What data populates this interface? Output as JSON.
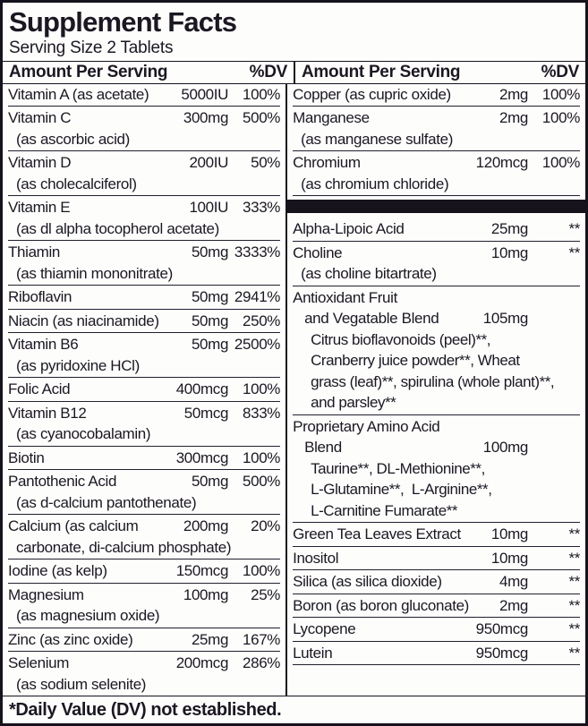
{
  "label": {
    "title": "Supplement Facts",
    "serving": "Serving Size 2 Tablets",
    "header_amount": "Amount Per Serving",
    "header_dv": "%DV",
    "footnote": "*Daily Value (DV) not established."
  },
  "colors": {
    "text": "#1c1722",
    "bar": "#17131c",
    "background": "#fdfdfc",
    "hairline": "#241e2e"
  },
  "left_rows": [
    {
      "name": "Vitamin A (as acetate)",
      "amount": "5000IU",
      "dv": "100%"
    },
    {
      "name": "Vitamin C",
      "amount": "300mg",
      "dv": "500%",
      "sub": "(as ascorbic acid)"
    },
    {
      "name": "Vitamin D",
      "amount": "200IU",
      "dv": "50%",
      "sub": "(as cholecalciferol)"
    },
    {
      "name": "Vitamin E",
      "amount": "100IU",
      "dv": "333%",
      "sub": "(as dl alpha tocopherol acetate)"
    },
    {
      "name": "Thiamin",
      "amount": "50mg",
      "dv": "3333%",
      "sub": "(as thiamin mononitrate)"
    },
    {
      "name": "Riboflavin",
      "amount": "50mg",
      "dv": "2941%"
    },
    {
      "name": "Niacin (as niacinamide)",
      "amount": "50mg",
      "dv": "250%"
    },
    {
      "name": "Vitamin B6",
      "amount": "50mg",
      "dv": "2500%",
      "sub": "(as pyridoxine HCl)"
    },
    {
      "name": "Folic Acid",
      "amount": "400mcg",
      "dv": "100%"
    },
    {
      "name": "Vitamin B12",
      "amount": "50mcg",
      "dv": "833%",
      "sub": "(as cyanocobalamin)"
    },
    {
      "name": "Biotin",
      "amount": "300mcg",
      "dv": "100%"
    },
    {
      "name": "Pantothenic Acid",
      "amount": "50mg",
      "dv": "500%",
      "sub": "(as d-calcium pantothenate)"
    },
    {
      "name": "Calcium (as calcium",
      "amount": "200mg",
      "dv": "20%",
      "sub": "carbonate, di-calcium phosphate)"
    },
    {
      "name": "Iodine (as kelp)",
      "amount": "150mcg",
      "dv": "100%"
    },
    {
      "name": "Magnesium",
      "amount": "100mg",
      "dv": "25%",
      "sub": "(as magnesium oxide)"
    },
    {
      "name": "Zinc (as zinc oxide)",
      "amount": "25mg",
      "dv": "167%"
    },
    {
      "name": "Selenium",
      "amount": "200mcg",
      "dv": "286%",
      "sub": "(as sodium selenite)"
    }
  ],
  "right_rows": [
    {
      "name": "Copper (as cupric oxide)",
      "amount": "2mg",
      "dv": "100%"
    },
    {
      "name": "Manganese",
      "amount": "2mg",
      "dv": "100%",
      "sub": "(as manganese sulfate)"
    },
    {
      "name": "Chromium",
      "amount": "120mcg",
      "dv": "100%",
      "sub": "(as chromium chloride)"
    },
    {
      "bar": true
    },
    {
      "name": "Alpha-Lipoic Acid",
      "amount": "25mg",
      "dv": "**"
    },
    {
      "name": "Choline",
      "amount": "10mg",
      "dv": "**",
      "sub": "(as choline bitartrate)"
    },
    {
      "name": "Antioxidant Fruit",
      "cont": "and Vegatable Blend",
      "amount": "105mg",
      "dv": "",
      "ingredients": [
        "Citrus bioflavonoids (peel)**,",
        "Cranberry juice powder**, Wheat",
        "grass (leaf)**, spirulina (whole plant)**,",
        "and parsley**"
      ]
    },
    {
      "name": "Proprietary Amino Acid",
      "cont": "Blend",
      "amount": "100mg",
      "dv": "",
      "ingredients": [
        "Taurine**, DL-Methionine**,",
        "L-Glutamine**,  L-Arginine**,",
        "L-Carnitine Fumarate**"
      ]
    },
    {
      "name": "Green Tea Leaves Extract",
      "amount": "10mg",
      "dv": "**"
    },
    {
      "name": "Inositol",
      "amount": "10mg",
      "dv": "**"
    },
    {
      "name": "Silica (as silica dioxide)",
      "amount": "4mg",
      "dv": "**"
    },
    {
      "name": "Boron (as boron gluconate)",
      "amount": "2mg",
      "dv": "**"
    },
    {
      "name": "Lycopene",
      "amount": "950mcg",
      "dv": "**"
    },
    {
      "name": "Lutein",
      "amount": "950mcg",
      "dv": "**"
    }
  ]
}
